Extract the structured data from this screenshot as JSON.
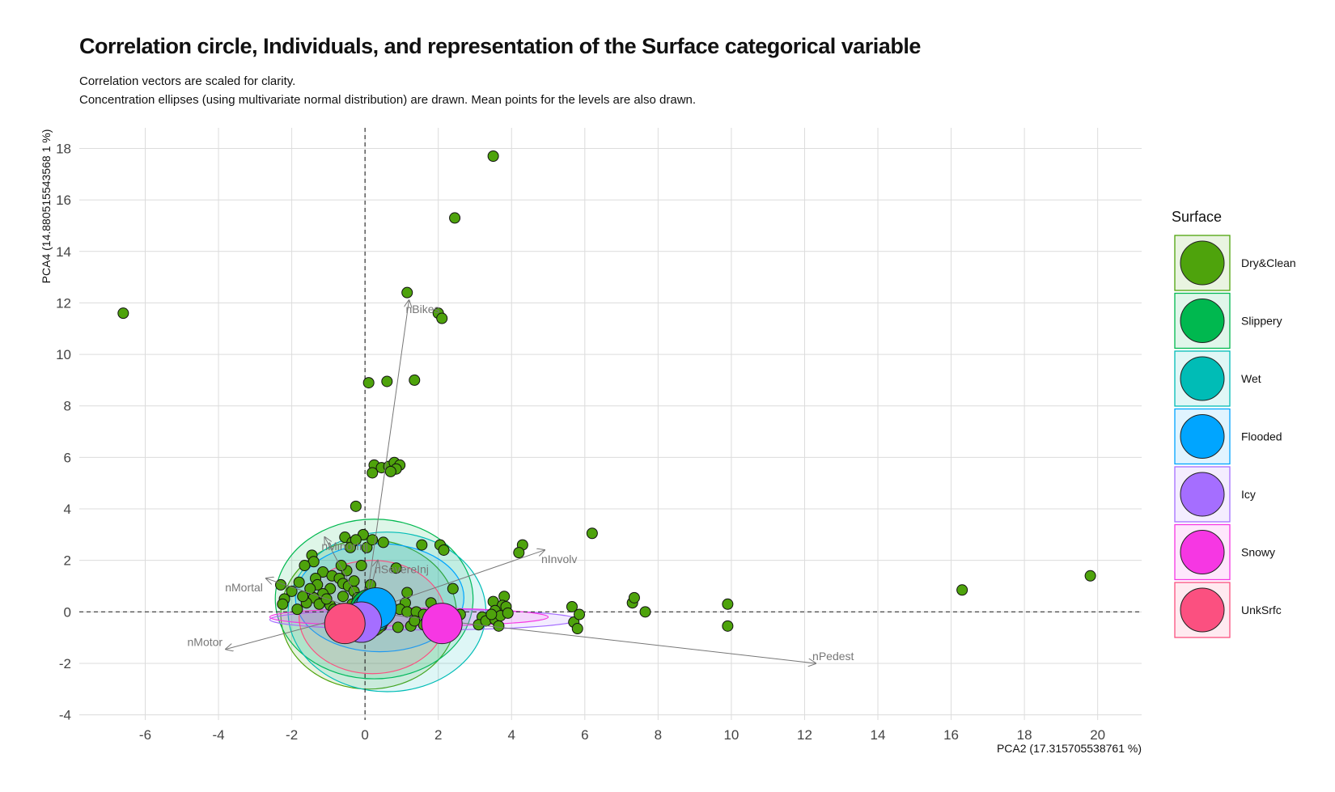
{
  "title": "Correlation circle, Individuals, and representation of the Surface categorical variable",
  "subtitle_lines": [
    "Correlation vectors are scaled for clarity.",
    "Concentration ellipses (using multivariate normal distribution) are drawn. Mean points for the levels are also drawn."
  ],
  "chart_data": {
    "type": "scatter",
    "xlabel": "PCA2 (17.315705538761 %)",
    "ylabel": "PCA4 (14.880515543568 1 %)",
    "xlim": [
      -7.8,
      21.2
    ],
    "ylim": [
      -4.2,
      18.8
    ],
    "x_ticks": [
      -6,
      -4,
      -2,
      0,
      2,
      4,
      6,
      8,
      10,
      12,
      14,
      16,
      18,
      20
    ],
    "y_ticks": [
      -4,
      -2,
      0,
      2,
      4,
      6,
      8,
      10,
      12,
      14,
      16,
      18
    ],
    "grid": true,
    "legend_title": "Surface",
    "legend_position": "right",
    "levels": [
      {
        "name": "Dry&Clean",
        "color": "#4EA30C"
      },
      {
        "name": "Slippery",
        "color": "#00B84F"
      },
      {
        "name": "Wet",
        "color": "#00BCB6"
      },
      {
        "name": "Flooded",
        "color": "#00A5FF"
      },
      {
        "name": "Icy",
        "color": "#A56EFF"
      },
      {
        "name": "Snowy",
        "color": "#F637E3"
      },
      {
        "name": "UnkSrfc",
        "color": "#FB5080"
      }
    ],
    "vectors": [
      {
        "name": "nBikes",
        "x": 1.2,
        "y": 12.1
      },
      {
        "name": "nInvolv",
        "x": 4.9,
        "y": 2.4
      },
      {
        "name": "nPedest",
        "x": 12.3,
        "y": -2.0
      },
      {
        "name": "nMortal",
        "x": -2.7,
        "y": 1.3
      },
      {
        "name": "nMotor",
        "x": -3.8,
        "y": -1.45
      },
      {
        "name": "nMinorInj",
        "x": -1.1,
        "y": 2.9
      },
      {
        "name": "nSevereInj",
        "x": 0.35,
        "y": 2.0
      }
    ],
    "ellipses": [
      {
        "level": "Dry&Clean",
        "cx": 0.1,
        "cy": -0.1,
        "rx": 2.4,
        "ry": 2.9
      },
      {
        "level": "Slippery",
        "cx": 0.25,
        "cy": 0.5,
        "rx": 2.7,
        "ry": 3.1
      },
      {
        "level": "Wet",
        "cx": 0.6,
        "cy": 0.0,
        "rx": 2.7,
        "ry": 3.1
      },
      {
        "level": "Flooded",
        "cx": 0.4,
        "cy": 0.55,
        "rx": 2.3,
        "ry": 2.1
      },
      {
        "level": "Icy",
        "cx": 1.6,
        "cy": -0.3,
        "rx": 4.2,
        "ry": 0.4
      },
      {
        "level": "Snowy",
        "cx": 1.2,
        "cy": -0.2,
        "rx": 3.8,
        "ry": 0.35
      },
      {
        "level": "UnkSrfc",
        "cx": 0.2,
        "cy": -0.2,
        "rx": 2.0,
        "ry": 2.2
      }
    ],
    "means": [
      {
        "level": "Dry&Clean",
        "x": 0.1,
        "y": -0.2
      },
      {
        "level": "Slippery",
        "x": 0.15,
        "y": 0.1
      },
      {
        "level": "Wet",
        "x": 0.2,
        "y": 0.0
      },
      {
        "level": "Flooded",
        "x": 0.3,
        "y": 0.15
      },
      {
        "level": "Icy",
        "x": -0.1,
        "y": -0.4
      },
      {
        "level": "Snowy",
        "x": 2.1,
        "y": -0.45
      },
      {
        "level": "UnkSrfc",
        "x": -0.55,
        "y": -0.45
      }
    ],
    "points": [
      [
        -6.6,
        11.6
      ],
      [
        3.5,
        17.7
      ],
      [
        2.45,
        15.3
      ],
      [
        1.15,
        12.4
      ],
      [
        2.0,
        11.6
      ],
      [
        2.1,
        11.4
      ],
      [
        0.1,
        8.9
      ],
      [
        0.6,
        8.95
      ],
      [
        1.35,
        9.0
      ],
      [
        0.25,
        5.7
      ],
      [
        0.45,
        5.6
      ],
      [
        0.65,
        5.65
      ],
      [
        0.8,
        5.8
      ],
      [
        0.95,
        5.7
      ],
      [
        0.85,
        5.55
      ],
      [
        0.7,
        5.45
      ],
      [
        0.2,
        5.4
      ],
      [
        -0.25,
        4.1
      ],
      [
        6.2,
        3.05
      ],
      [
        4.3,
        2.6
      ],
      [
        4.2,
        2.3
      ],
      [
        2.05,
        2.6
      ],
      [
        2.15,
        2.4
      ],
      [
        1.55,
        2.6
      ],
      [
        0.5,
        2.7
      ],
      [
        0.85,
        1.7
      ],
      [
        -0.05,
        3.0
      ],
      [
        -0.55,
        2.9
      ],
      [
        -0.35,
        2.7
      ],
      [
        -1.45,
        2.2
      ],
      [
        -1.4,
        1.95
      ],
      [
        -1.65,
        1.8
      ],
      [
        -0.4,
        2.5
      ],
      [
        0.05,
        2.5
      ],
      [
        -2.3,
        1.05
      ],
      [
        -1.8,
        1.15
      ],
      [
        -2.0,
        0.8
      ],
      [
        -2.2,
        0.5
      ],
      [
        -1.15,
        1.55
      ],
      [
        -1.35,
        1.3
      ],
      [
        -1.3,
        1.05
      ],
      [
        -0.9,
        1.4
      ],
      [
        -0.7,
        1.3
      ],
      [
        -0.6,
        1.1
      ],
      [
        -0.95,
        0.9
      ],
      [
        -1.15,
        0.7
      ],
      [
        -1.4,
        0.55
      ],
      [
        -1.6,
        0.35
      ],
      [
        -1.85,
        0.1
      ],
      [
        -1.25,
        0.3
      ],
      [
        -0.95,
        0.25
      ],
      [
        -0.45,
        1.0
      ],
      [
        -0.3,
        0.8
      ],
      [
        -0.2,
        0.55
      ],
      [
        0.15,
        1.05
      ],
      [
        1.15,
        0.75
      ],
      [
        1.1,
        0.35
      ],
      [
        1.8,
        0.35
      ],
      [
        2.4,
        0.9
      ],
      [
        0.95,
        0.1
      ],
      [
        1.15,
        0.0
      ],
      [
        1.4,
        0.0
      ],
      [
        1.6,
        -0.1
      ],
      [
        1.8,
        -0.2
      ],
      [
        2.15,
        -0.15
      ],
      [
        2.6,
        -0.1
      ],
      [
        0.9,
        -0.6
      ],
      [
        1.25,
        -0.55
      ],
      [
        1.6,
        -0.5
      ],
      [
        0.55,
        -0.1
      ],
      [
        3.5,
        0.4
      ],
      [
        3.8,
        0.6
      ],
      [
        3.75,
        0.25
      ],
      [
        3.55,
        0.05
      ],
      [
        3.85,
        0.2
      ],
      [
        3.2,
        -0.2
      ],
      [
        3.1,
        -0.5
      ],
      [
        3.3,
        -0.35
      ],
      [
        3.55,
        -0.3
      ],
      [
        3.7,
        -0.15
      ],
      [
        3.9,
        -0.05
      ],
      [
        3.65,
        -0.55
      ],
      [
        3.45,
        -0.1
      ],
      [
        5.65,
        0.2
      ],
      [
        5.7,
        -0.4
      ],
      [
        5.85,
        -0.1
      ],
      [
        5.8,
        -0.65
      ],
      [
        7.3,
        0.35
      ],
      [
        7.35,
        0.55
      ],
      [
        7.65,
        0.0
      ],
      [
        9.9,
        0.3
      ],
      [
        9.9,
        -0.55
      ],
      [
        16.3,
        0.85
      ],
      [
        19.8,
        1.4
      ],
      [
        -0.15,
        0.15
      ],
      [
        -0.55,
        -0.1
      ],
      [
        -0.8,
        0.0
      ],
      [
        -2.25,
        0.3
      ],
      [
        -1.7,
        0.6
      ],
      [
        -0.5,
        1.6
      ],
      [
        -0.65,
        1.8
      ],
      [
        -0.3,
        1.2
      ],
      [
        0.2,
        2.8
      ],
      [
        -0.25,
        2.8
      ],
      [
        -0.6,
        0.6
      ],
      [
        -0.35,
        0.3
      ],
      [
        -1.05,
        0.5
      ],
      [
        -0.85,
        0.1
      ],
      [
        -0.2,
        -0.35
      ],
      [
        0.45,
        -0.55
      ],
      [
        1.35,
        -0.35
      ],
      [
        2.0,
        0.1
      ],
      [
        -1.5,
        0.9
      ],
      [
        -0.1,
        1.8
      ]
    ]
  }
}
